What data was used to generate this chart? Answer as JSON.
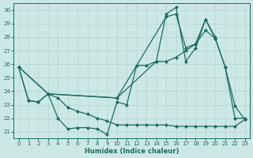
{
  "xlabel": "Humidex (Indice chaleur)",
  "xlim": [
    -0.5,
    23.5
  ],
  "ylim": [
    20.5,
    30.5
  ],
  "yticks": [
    21,
    22,
    23,
    24,
    25,
    26,
    27,
    28,
    29,
    30
  ],
  "xticks": [
    0,
    1,
    2,
    3,
    4,
    5,
    6,
    7,
    8,
    9,
    10,
    11,
    12,
    13,
    14,
    15,
    16,
    17,
    18,
    19,
    20,
    21,
    22,
    23
  ],
  "bg_color": "#cce8e5",
  "line_color": "#1d6b60",
  "grid_color": "#b8d8d5",
  "line1_x": [
    0,
    1,
    2,
    3,
    4,
    5,
    6,
    7,
    8,
    9,
    10,
    11,
    12,
    13,
    14,
    15,
    16,
    17,
    18,
    19,
    20,
    21,
    22,
    23
  ],
  "line1_y": [
    25.8,
    23.3,
    23.2,
    23.8,
    22.0,
    21.2,
    21.3,
    21.3,
    21.2,
    20.8,
    23.2,
    23.0,
    25.9,
    25.9,
    26.2,
    29.7,
    30.2,
    26.2,
    27.2,
    29.3,
    27.9,
    25.8,
    22.9,
    21.9
  ],
  "line2_x": [
    0,
    3,
    10,
    14,
    15,
    16,
    17,
    18,
    19,
    20,
    21,
    22,
    23
  ],
  "line2_y": [
    25.8,
    23.8,
    23.5,
    26.2,
    26.2,
    26.5,
    27.0,
    27.5,
    28.5,
    27.9,
    25.8,
    22.0,
    22.0
  ],
  "line3_x": [
    0,
    3,
    10,
    15,
    16,
    17,
    18,
    19,
    20
  ],
  "line3_y": [
    25.8,
    23.8,
    23.5,
    29.5,
    29.7,
    27.2,
    27.5,
    29.3,
    28.0
  ],
  "line4_x": [
    0,
    1,
    2,
    3,
    4,
    5,
    6,
    7,
    8,
    9,
    10,
    11,
    12,
    13,
    14,
    15,
    16,
    17,
    18,
    19,
    20,
    21,
    22,
    23
  ],
  "line4_y": [
    25.8,
    23.3,
    23.2,
    23.8,
    23.5,
    22.8,
    22.5,
    22.3,
    22.0,
    21.8,
    21.5,
    21.5,
    21.5,
    21.5,
    21.5,
    21.5,
    21.4,
    21.4,
    21.4,
    21.4,
    21.4,
    21.4,
    21.4,
    21.9
  ]
}
